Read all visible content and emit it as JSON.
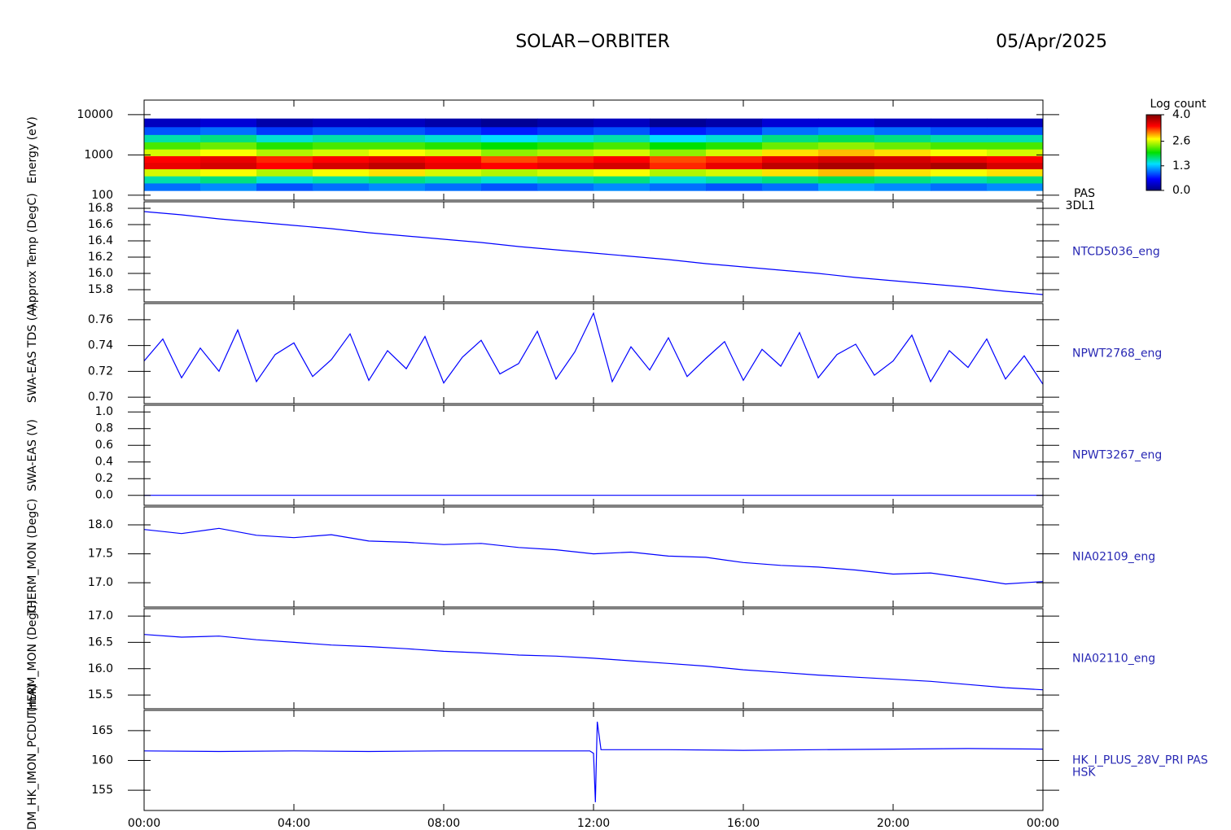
{
  "title": "SOLAR−ORBITER",
  "date": "05/Apr/2025",
  "chart_data": [
    {
      "type": "heatmap",
      "ylabel": "Energy (eV)",
      "right_label": [
        "PAS",
        "3DL1"
      ],
      "log_scale": true,
      "xlim": [
        0,
        24
      ],
      "ylim": [
        75,
        23000
      ],
      "yticks": [
        100,
        1000,
        10000
      ],
      "x": [
        0,
        1.5,
        3,
        4.5,
        6,
        7.5,
        9,
        10.5,
        12,
        13.5,
        15,
        16.5,
        18,
        19.5,
        21,
        22.5,
        24
      ],
      "y": [
        130,
        200,
        300,
        450,
        650,
        950,
        1400,
        2100,
        3200,
        5000,
        8000
      ],
      "z": [
        [
          1.0,
          1.1,
          0.9,
          1.0,
          1.1,
          1.0,
          0.9,
          1.0,
          1.1,
          1.0,
          0.9,
          1.0,
          1.2,
          1.1,
          1.0,
          1.1
        ],
        [
          1.6,
          1.7,
          1.5,
          1.6,
          1.7,
          1.6,
          1.5,
          1.6,
          1.7,
          1.5,
          1.6,
          1.7,
          1.8,
          1.7,
          1.6,
          1.7
        ],
        [
          2.6,
          2.7,
          2.5,
          2.7,
          2.8,
          2.6,
          2.5,
          2.6,
          2.7,
          2.5,
          2.6,
          2.8,
          2.9,
          2.8,
          2.7,
          2.8
        ],
        [
          3.5,
          3.6,
          3.4,
          3.6,
          3.7,
          3.5,
          3.4,
          3.5,
          3.6,
          3.3,
          3.5,
          3.7,
          3.8,
          3.7,
          3.8,
          3.6
        ],
        [
          3.4,
          3.5,
          3.3,
          3.4,
          3.5,
          3.4,
          3.2,
          3.3,
          3.4,
          3.2,
          3.3,
          3.5,
          3.6,
          3.6,
          3.5,
          3.4
        ],
        [
          2.6,
          2.7,
          2.5,
          2.6,
          2.7,
          2.6,
          2.4,
          2.5,
          2.6,
          2.4,
          2.6,
          2.8,
          2.9,
          2.8,
          2.7,
          2.6
        ],
        [
          2.2,
          2.3,
          2.1,
          2.2,
          2.2,
          2.1,
          2.0,
          2.1,
          2.2,
          2.0,
          2.1,
          2.3,
          2.4,
          2.3,
          2.2,
          2.2
        ],
        [
          1.6,
          1.7,
          1.5,
          1.6,
          1.6,
          1.5,
          1.4,
          1.5,
          1.6,
          1.4,
          1.5,
          1.7,
          1.8,
          1.7,
          1.6,
          1.6
        ],
        [
          0.9,
          1.0,
          0.8,
          0.9,
          0.9,
          0.8,
          0.7,
          0.8,
          0.9,
          0.7,
          0.8,
          1.0,
          1.1,
          1.0,
          0.9,
          0.9
        ],
        [
          0.3,
          0.4,
          0.2,
          0.3,
          0.3,
          0.2,
          0.1,
          0.2,
          0.3,
          0.1,
          0.2,
          0.4,
          0.4,
          0.3,
          0.3,
          0.3
        ]
      ],
      "colorbar": {
        "label": "Log count",
        "lim": [
          0,
          4
        ],
        "ticks": [
          {
            "value": 0,
            "label": "0.0"
          },
          1.3,
          2.6,
          {
            "value": 4,
            "label": "4.0"
          }
        ]
      }
    },
    {
      "type": "line",
      "ylabel": "Approx Temp (DegC)",
      "right_label": [
        "NTCD5036_eng"
      ],
      "color": "#0000ff",
      "xlim": [
        0,
        24
      ],
      "ylim": [
        15.65,
        16.88
      ],
      "yticks": [
        15.8,
        {
          "value": 16,
          "label": "16.0"
        },
        16.2,
        16.4,
        16.6,
        16.8
      ],
      "x": [
        0,
        1,
        2,
        3,
        4,
        5,
        6,
        7,
        8,
        9,
        10,
        11,
        12,
        13,
        14,
        15,
        16,
        17,
        18,
        19,
        20,
        21,
        22,
        23,
        24
      ],
      "values": [
        16.76,
        16.72,
        16.67,
        16.63,
        16.59,
        16.55,
        16.5,
        16.46,
        16.42,
        16.38,
        16.33,
        16.29,
        16.25,
        16.21,
        16.17,
        16.12,
        16.08,
        16.04,
        16.0,
        15.95,
        15.91,
        15.87,
        15.83,
        15.78,
        15.74
      ]
    },
    {
      "type": "line",
      "ylabel": "SWA-EAS TDS (A)",
      "right_label": [
        "NPWT2768_eng"
      ],
      "color": "#0000ff",
      "xlim": [
        0,
        24
      ],
      "ylim": [
        0.695,
        0.7725
      ],
      "yticks": [
        {
          "value": 0.7,
          "label": "0.70"
        },
        0.72,
        0.74,
        0.76
      ],
      "x": [
        0,
        0.5,
        1,
        1.5,
        2,
        2.5,
        3,
        3.5,
        4,
        4.5,
        5,
        5.5,
        6,
        6.5,
        7,
        7.5,
        8,
        8.5,
        9,
        9.5,
        10,
        10.5,
        11,
        11.5,
        12,
        12.5,
        13,
        13.5,
        14,
        14.5,
        15,
        15.5,
        16,
        16.5,
        17,
        17.5,
        18,
        18.5,
        19,
        19.5,
        20,
        20.5,
        21,
        21.5,
        22,
        22.5,
        23,
        23.5,
        24
      ],
      "values": [
        0.728,
        0.745,
        0.715,
        0.738,
        0.72,
        0.752,
        0.712,
        0.733,
        0.742,
        0.716,
        0.729,
        0.749,
        0.713,
        0.736,
        0.722,
        0.747,
        0.711,
        0.731,
        0.744,
        0.718,
        0.726,
        0.751,
        0.714,
        0.735,
        0.765,
        0.712,
        0.739,
        0.721,
        0.746,
        0.716,
        0.73,
        0.743,
        0.713,
        0.737,
        0.724,
        0.75,
        0.715,
        0.733,
        0.741,
        0.717,
        0.728,
        0.748,
        0.712,
        0.736,
        0.723,
        0.745,
        0.714,
        0.732,
        0.71
      ]
    },
    {
      "type": "line",
      "ylabel": "SWA-EAS (V)",
      "right_label": [
        "NPWT3267_eng"
      ],
      "color": "#0000ff",
      "xlim": [
        0,
        24
      ],
      "ylim": [
        -0.12,
        1.08
      ],
      "yticks": [
        {
          "value": 0,
          "label": "0.0"
        },
        0.2,
        0.4,
        0.6,
        0.8,
        {
          "value": 1,
          "label": "1.0"
        }
      ],
      "x": [
        0,
        24
      ],
      "values": [
        0,
        0
      ]
    },
    {
      "type": "line",
      "ylabel": "THERM_MON (DegC)",
      "right_label": [
        "NIA02109_eng"
      ],
      "color": "#0000ff",
      "xlim": [
        0,
        24
      ],
      "ylim": [
        16.58,
        18.31
      ],
      "yticks": [
        {
          "value": 17,
          "label": "17.0"
        },
        17.5,
        {
          "value": 18,
          "label": "18.0"
        }
      ],
      "x": [
        0,
        1,
        2,
        3,
        4,
        5,
        6,
        7,
        8,
        9,
        10,
        11,
        12,
        13,
        14,
        15,
        16,
        17,
        18,
        19,
        20,
        21,
        22,
        23,
        24
      ],
      "values": [
        17.92,
        17.85,
        17.94,
        17.82,
        17.78,
        17.83,
        17.72,
        17.7,
        17.66,
        17.68,
        17.61,
        17.57,
        17.5,
        17.53,
        17.46,
        17.44,
        17.35,
        17.3,
        17.27,
        17.22,
        17.15,
        17.17,
        17.08,
        16.98,
        17.02
      ]
    },
    {
      "type": "line",
      "ylabel": "THERM_MON (DegC)",
      "right_label": [
        "NIA02110_eng"
      ],
      "color": "#0000ff",
      "xlim": [
        0,
        24
      ],
      "ylim": [
        15.24,
        17.14
      ],
      "yticks": [
        15.5,
        {
          "value": 16,
          "label": "16.0"
        },
        16.5,
        {
          "value": 17,
          "label": "17.0"
        }
      ],
      "x": [
        0,
        1,
        2,
        3,
        4,
        5,
        6,
        7,
        8,
        9,
        10,
        11,
        12,
        13,
        14,
        15,
        16,
        17,
        18,
        19,
        20,
        21,
        22,
        23,
        24
      ],
      "values": [
        16.65,
        16.6,
        16.62,
        16.55,
        16.5,
        16.45,
        16.42,
        16.38,
        16.33,
        16.3,
        16.26,
        16.24,
        16.2,
        16.15,
        16.1,
        16.05,
        15.98,
        15.93,
        15.88,
        15.84,
        15.8,
        15.76,
        15.7,
        15.64,
        15.6
      ]
    },
    {
      "type": "line",
      "ylabel": "PDM_HK_IMON_PCDU (mA)",
      "right_label": [
        "HK_I_PLUS_28V_PRI PAS",
        "HSK"
      ],
      "color": "#0000ff",
      "xlim": [
        0,
        24
      ],
      "ylim": [
        151.6,
        168.4
      ],
      "yticks": [
        155,
        160,
        165
      ],
      "xticks": [
        {
          "value": 0,
          "label": "00:00"
        },
        {
          "value": 4,
          "label": "04:00"
        },
        {
          "value": 8,
          "label": "08:00"
        },
        {
          "value": 12,
          "label": "12:00"
        },
        {
          "value": 16,
          "label": "16:00"
        },
        {
          "value": 20,
          "label": "20:00"
        },
        {
          "value": 24,
          "label": "00:00"
        }
      ],
      "x": [
        0,
        2,
        4,
        6,
        8,
        10,
        11.9,
        12.0,
        12.05,
        12.1,
        12.2,
        14,
        16,
        18,
        20,
        22,
        24
      ],
      "values": [
        161.6,
        161.5,
        161.6,
        161.5,
        161.6,
        161.6,
        161.6,
        161.2,
        153.0,
        166.5,
        161.8,
        161.8,
        161.7,
        161.8,
        161.9,
        162.0,
        161.9
      ]
    }
  ]
}
